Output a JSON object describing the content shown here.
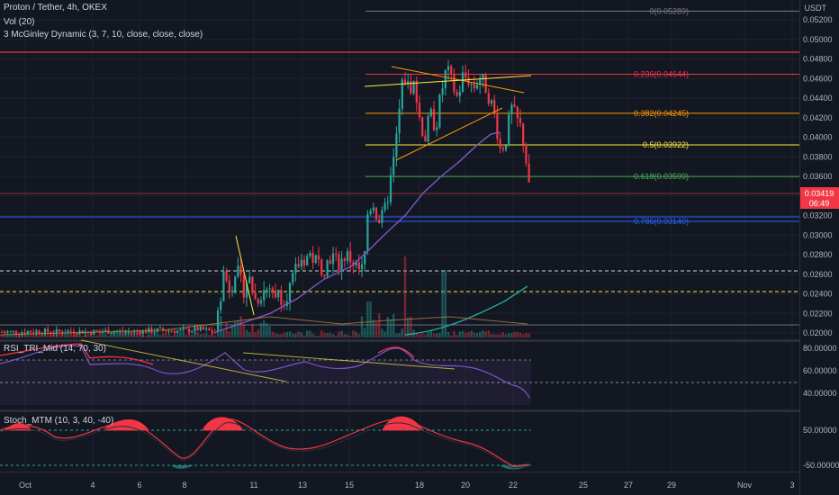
{
  "header": {
    "symbol_line": "Proton / Tether, 4h, OKEX",
    "volume_line": "Vol (20)",
    "mcginley_line": "3 McGinley Dynamic (3, 7, 10, close, close, close)"
  },
  "price_axis": {
    "unit": "USDT",
    "ticks": [
      "0.05200",
      "0.05000",
      "0.04800",
      "0.04600",
      "0.04400",
      "0.04200",
      "0.04000",
      "0.03800",
      "0.03600",
      "0.03400",
      "0.03200",
      "0.03000",
      "0.02800",
      "0.02600",
      "0.02400",
      "0.02200",
      "0.02000"
    ],
    "last_price": "0.03419",
    "countdown": "06:49"
  },
  "time_axis": {
    "labels": [
      "Oct",
      "4",
      "6",
      "8",
      "11",
      "13",
      "15",
      "18",
      "20",
      "22",
      "25",
      "27",
      "29",
      "Nov",
      "3"
    ]
  },
  "fibonacci": [
    {
      "text": "0(0.05289)",
      "level": 0.05289,
      "color": "#787b86"
    },
    {
      "text": "0.236(0.04644)",
      "level": 0.04644,
      "color": "#f23645"
    },
    {
      "text": "0.382(0.04245)",
      "level": 0.04245,
      "color": "#ff9800"
    },
    {
      "text": "0.5(0.03922)",
      "level": 0.03922,
      "color": "#ffeb3b"
    },
    {
      "text": "0.618(0.03599)",
      "level": 0.03599,
      "color": "#4caf50"
    },
    {
      "text": "0.786(0.03140)",
      "level": 0.0314,
      "color": "#2962ff"
    }
  ],
  "rsi": {
    "label": "RSI_TRI_Mid (14, 70, 30)",
    "ticks": [
      "80.00000",
      "60.00000",
      "40.00000"
    ]
  },
  "stoch": {
    "label": "Stoch_MTM (10, 3, 40, -40)",
    "ticks": [
      "50.00000",
      "-50.00000"
    ]
  },
  "chart_data": {
    "type": "candlestick",
    "symbol": "Proton / Tether",
    "interval": "4h",
    "exchange": "OKEX",
    "ylim": [
      0.0197,
      0.0532
    ],
    "close_path": [
      [
        0,
        0.0201
      ],
      [
        20,
        0.0201
      ],
      [
        40,
        0.0202
      ],
      [
        60,
        0.0201
      ],
      [
        80,
        0.0202
      ],
      [
        100,
        0.0201
      ],
      [
        120,
        0.0202
      ],
      [
        140,
        0.0201
      ],
      [
        160,
        0.0202
      ],
      [
        180,
        0.0203
      ],
      [
        200,
        0.0202
      ],
      [
        220,
        0.0204
      ],
      [
        240,
        0.0201
      ],
      [
        248,
        0.0262
      ],
      [
        256,
        0.0244
      ],
      [
        262,
        0.0268
      ],
      [
        270,
        0.0243
      ],
      [
        276,
        0.0258
      ],
      [
        284,
        0.0233
      ],
      [
        292,
        0.0243
      ],
      [
        300,
        0.0247
      ],
      [
        308,
        0.024
      ],
      [
        316,
        0.0236
      ],
      [
        324,
        0.025
      ],
      [
        330,
        0.0268
      ],
      [
        336,
        0.0275
      ],
      [
        344,
        0.028
      ],
      [
        352,
        0.0272
      ],
      [
        360,
        0.0266
      ],
      [
        368,
        0.028
      ],
      [
        376,
        0.027
      ],
      [
        384,
        0.028
      ],
      [
        392,
        0.0273
      ],
      [
        398,
        0.0264
      ],
      [
        404,
        0.0265
      ],
      [
        408,
        0.0321
      ],
      [
        414,
        0.0335
      ],
      [
        420,
        0.0315
      ],
      [
        426,
        0.0318
      ],
      [
        432,
        0.0346
      ],
      [
        438,
        0.038
      ],
      [
        444,
        0.043
      ],
      [
        448,
        0.0464
      ],
      [
        454,
        0.045
      ],
      [
        460,
        0.0455
      ],
      [
        466,
        0.042
      ],
      [
        472,
        0.0398
      ],
      [
        478,
        0.0424
      ],
      [
        484,
        0.041
      ],
      [
        490,
        0.0445
      ],
      [
        496,
        0.047
      ],
      [
        502,
        0.0455
      ],
      [
        508,
        0.044
      ],
      [
        514,
        0.0462
      ],
      [
        520,
        0.046
      ],
      [
        526,
        0.045
      ],
      [
        532,
        0.0462
      ],
      [
        538,
        0.0455
      ],
      [
        544,
        0.044
      ],
      [
        550,
        0.042
      ],
      [
        556,
        0.0386
      ],
      [
        562,
        0.0398
      ],
      [
        568,
        0.043
      ],
      [
        574,
        0.0418
      ],
      [
        580,
        0.0406
      ],
      [
        586,
        0.0365
      ],
      [
        588,
        0.0342
      ]
    ],
    "mcginley_path": [
      [
        240,
        0.0201
      ],
      [
        300,
        0.022
      ],
      [
        330,
        0.0235
      ],
      [
        360,
        0.0255
      ],
      [
        390,
        0.0268
      ],
      [
        410,
        0.0285
      ],
      [
        430,
        0.0303
      ],
      [
        450,
        0.032
      ],
      [
        470,
        0.0343
      ],
      [
        490,
        0.036
      ],
      [
        510,
        0.0375
      ],
      [
        530,
        0.0392
      ],
      [
        545,
        0.0403
      ],
      [
        555,
        0.0405
      ]
    ],
    "series": [
      {
        "name": "Vol (20)"
      },
      {
        "name": "3 McGinley Dynamic (3, 7, 10, close, close, close)"
      }
    ]
  }
}
